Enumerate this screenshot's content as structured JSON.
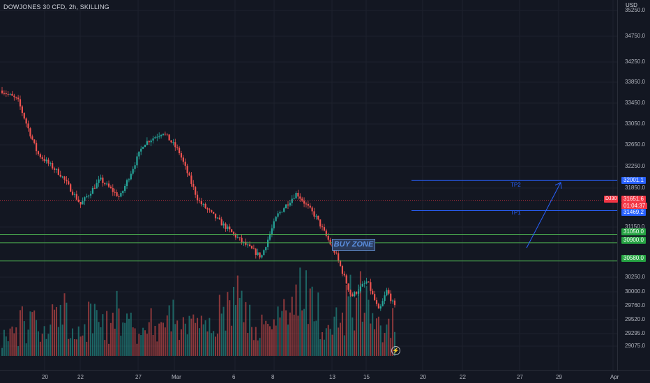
{
  "header": {
    "title": "DOWJONES 30 CFD, 2h, SKILLING",
    "currency": "USD"
  },
  "price_axis": {
    "ticks": [
      "35250.0",
      "34750.0",
      "34250.0",
      "33850.0",
      "33450.0",
      "33050.0",
      "32650.0",
      "32250.0",
      "31850.0",
      "31150.0",
      "30250.0",
      "30000.0",
      "29760.0",
      "29520.0",
      "29295.0",
      "29075.0"
    ]
  },
  "date_axis": {
    "ticks": [
      "20",
      "22",
      "27",
      "Mar",
      "6",
      "8",
      "13",
      "15",
      "20",
      "22",
      "27",
      "29",
      "Apr"
    ]
  },
  "price_badges": {
    "tp2": "32001.1",
    "last_price": "31651.6",
    "countdown": "01:04:37",
    "tp1": "31469.2",
    "support_1": "31050.0",
    "support_2": "30900.0",
    "support_3": "30580.0"
  },
  "symbol_badge": "DJ30",
  "drawings": {
    "tp2_label": "TP2",
    "tp1_label": "TP1",
    "buy_zone_label": "BUY ZONE"
  },
  "colors": {
    "background": "#131722",
    "up": "#26a69a",
    "down": "#ef5350",
    "tp_line": "#2962ff",
    "support_line": "#4caf50",
    "last_price_line": "#f23645"
  },
  "chart_data": {
    "type": "candlestick",
    "symbol": "DOWJONES 30 CFD",
    "interval": "2h",
    "last_price": 31651.6,
    "levels": {
      "tp2": 32001.1,
      "tp1": 31469.2,
      "support": [
        31050.0,
        30900.0,
        30580.0
      ]
    },
    "path": [
      [
        0,
        33590
      ],
      [
        0.04,
        33420
      ],
      [
        0.09,
        32480
      ],
      [
        0.15,
        32100
      ],
      [
        0.2,
        31580
      ],
      [
        0.25,
        32020
      ],
      [
        0.3,
        31700
      ],
      [
        0.36,
        32650
      ],
      [
        0.41,
        32860
      ],
      [
        0.45,
        32520
      ],
      [
        0.5,
        31640
      ],
      [
        0.55,
        31300
      ],
      [
        0.61,
        30920
      ],
      [
        0.66,
        30650
      ],
      [
        0.7,
        31380
      ],
      [
        0.75,
        31780
      ],
      [
        0.8,
        31350
      ],
      [
        0.85,
        30700
      ],
      [
        0.89,
        29950
      ],
      [
        0.93,
        30220
      ],
      [
        0.96,
        29680
      ],
      [
        0.98,
        30060
      ],
      [
        1,
        29760
      ]
    ],
    "volume_profile": [
      0.35,
      0.55,
      0.4,
      0.7,
      0.45,
      0.6,
      0.5,
      0.8,
      0.4,
      0.55,
      0.65,
      0.5,
      0.45,
      0.75,
      0.9,
      0.6,
      0.55,
      0.85,
      1.0,
      0.7,
      0.65,
      0.95,
      0.8,
      0.6
    ]
  }
}
